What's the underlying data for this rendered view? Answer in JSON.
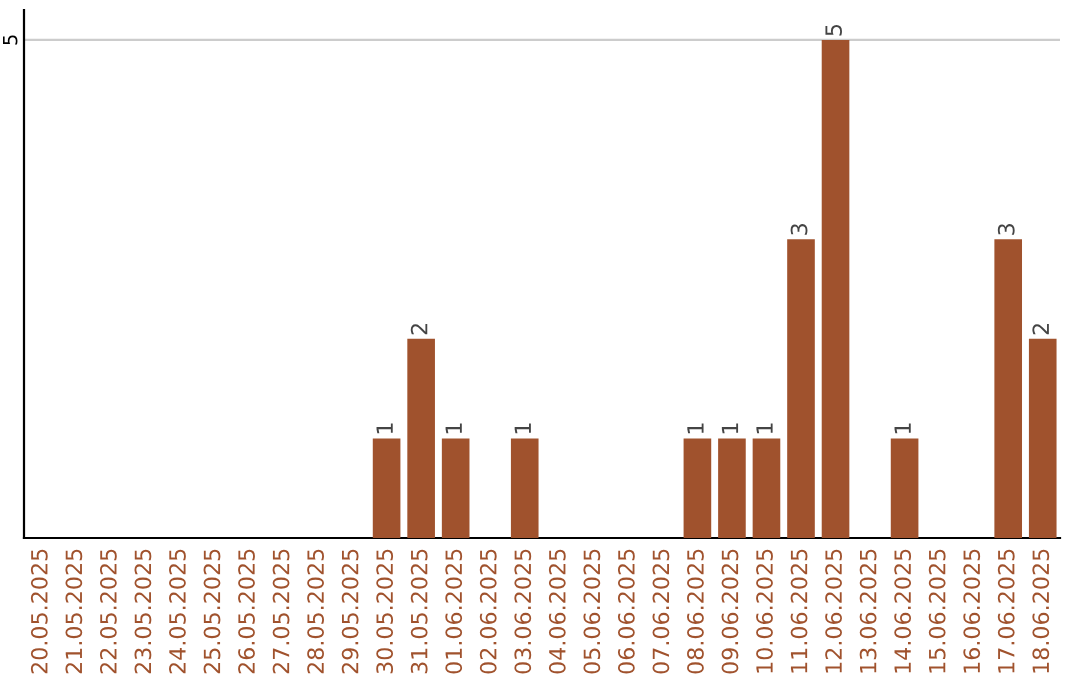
{
  "chart_data": {
    "type": "bar",
    "categories": [
      "20.05.2025",
      "21.05.2025",
      "22.05.2025",
      "23.05.2025",
      "24.05.2025",
      "25.05.2025",
      "26.05.2025",
      "27.05.2025",
      "28.05.2025",
      "29.05.2025",
      "30.05.2025",
      "31.05.2025",
      "01.06.2025",
      "02.06.2025",
      "03.06.2025",
      "04.06.2025",
      "05.06.2025",
      "06.06.2025",
      "07.06.2025",
      "08.06.2025",
      "09.06.2025",
      "10.06.2025",
      "11.06.2025",
      "12.06.2025",
      "13.06.2025",
      "14.06.2025",
      "15.06.2025",
      "16.06.2025",
      "17.06.2025",
      "18.06.2025"
    ],
    "values": [
      0,
      0,
      0,
      0,
      0,
      0,
      0,
      0,
      0,
      0,
      1,
      2,
      1,
      0,
      1,
      0,
      0,
      0,
      0,
      1,
      1,
      1,
      3,
      5,
      0,
      1,
      0,
      0,
      3,
      2
    ],
    "value_labels": [
      null,
      null,
      null,
      null,
      null,
      null,
      null,
      null,
      null,
      null,
      "1",
      "2",
      "1",
      null,
      "1",
      null,
      null,
      null,
      null,
      "1",
      "1",
      "1",
      "3",
      "5",
      null,
      "1",
      null,
      null,
      "3",
      "2"
    ],
    "color": "#a0522d",
    "ylim": [
      0,
      5.3
    ],
    "yticks": [
      5
    ],
    "grid": "y"
  }
}
